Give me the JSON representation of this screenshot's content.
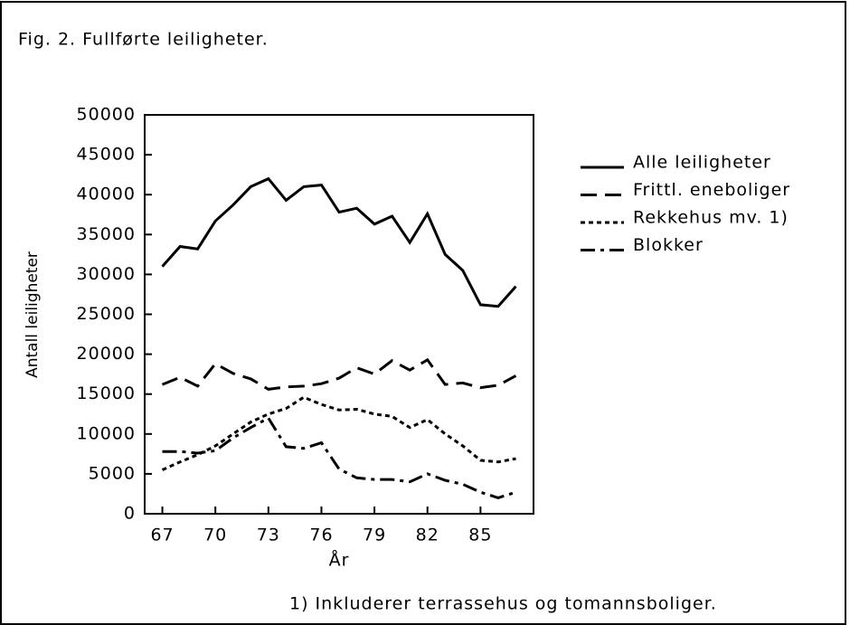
{
  "chart_data": {
    "type": "line",
    "title": "Fig. 2. Fullførte leiligheter.",
    "y_label": "Antall leiligheter",
    "x_label": "År",
    "footnote": "1) Inkluderer terrassehus og tomannsboliger.",
    "x": [
      67,
      68,
      69,
      70,
      71,
      72,
      73,
      74,
      75,
      76,
      77,
      78,
      79,
      80,
      81,
      82,
      83,
      84,
      85,
      86,
      87
    ],
    "xlim": [
      66,
      88
    ],
    "xticks": [
      67,
      70,
      73,
      76,
      79,
      82,
      85
    ],
    "ylim": [
      0,
      50000
    ],
    "yticks": [
      0,
      5000,
      10000,
      15000,
      20000,
      25000,
      30000,
      35000,
      40000,
      45000,
      50000
    ],
    "series": [
      {
        "name": "Alle leiligheter",
        "color": "#000000",
        "dash": "solid",
        "values": [
          31000,
          33500,
          33200,
          36700,
          38700,
          41000,
          42000,
          39300,
          41000,
          41200,
          37800,
          38300,
          36300,
          37300,
          34000,
          37600,
          32500,
          30500,
          26200,
          26000,
          28500
        ]
      },
      {
        "name": "Frittl. eneboliger",
        "color": "#000000",
        "dash": "dashed",
        "values": [
          16200,
          17100,
          16000,
          18800,
          17600,
          16900,
          15600,
          15900,
          16000,
          16300,
          17000,
          18300,
          17500,
          19200,
          18000,
          19300,
          16200,
          16400,
          15800,
          16100,
          17300
        ]
      },
      {
        "name": "Rekkehus mv. 1)",
        "color": "#000000",
        "dash": "dotted",
        "values": [
          5500,
          6500,
          7400,
          8500,
          10000,
          11500,
          12500,
          13200,
          14600,
          13700,
          13000,
          13100,
          12500,
          12200,
          10800,
          11800,
          10000,
          8500,
          6700,
          6500,
          6900
        ]
      },
      {
        "name": "Blokker",
        "color": "#000000",
        "dash": "dashdot",
        "values": [
          7800,
          7800,
          7600,
          7900,
          9500,
          10800,
          12000,
          8400,
          8200,
          8900,
          5600,
          4500,
          4300,
          4300,
          4000,
          5000,
          4200,
          3700,
          2700,
          2000,
          2700
        ]
      }
    ]
  }
}
